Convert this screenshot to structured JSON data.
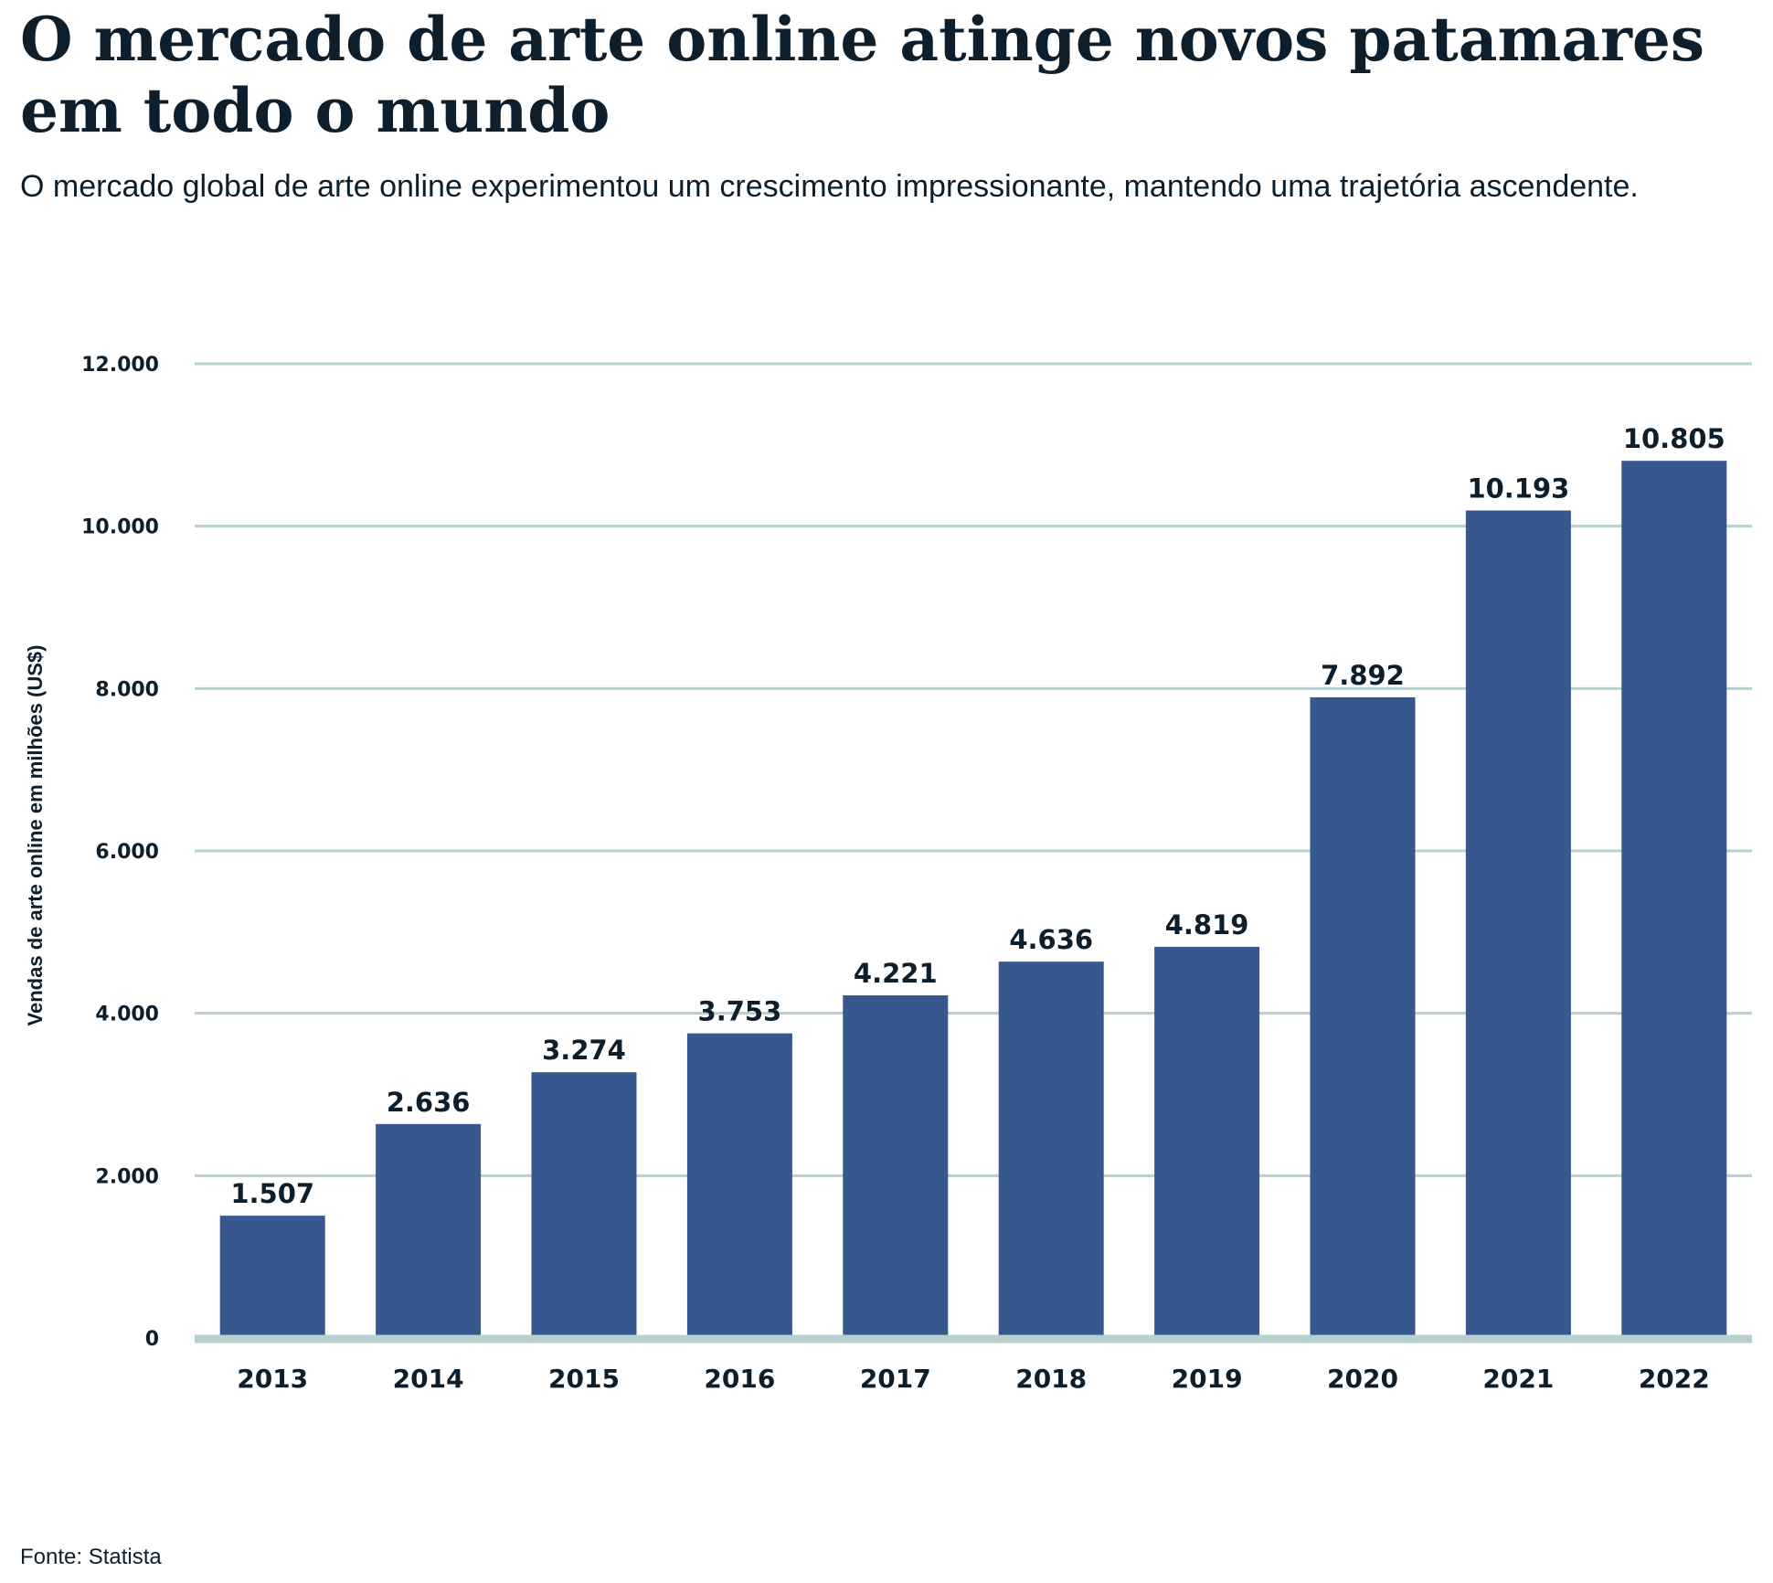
{
  "title": "O mercado de arte online atinge novos patamares em todo o mundo",
  "subtitle": "O mercado global de arte online experimentou um crescimento impressionante, mantendo uma trajetória ascendente.",
  "source": "Fonte: Statista",
  "colors": {
    "bar": "#36588f",
    "grid": "#b7cfcf",
    "text": "#0d1f2d"
  },
  "chart_data": {
    "type": "bar",
    "title": "O mercado de arte online atinge novos patamares em todo o mundo",
    "xlabel": "",
    "ylabel": "Vendas de arte online em milhões (US$)",
    "categories": [
      "2013",
      "2014",
      "2015",
      "2016",
      "2017",
      "2018",
      "2019",
      "2020",
      "2021",
      "2022"
    ],
    "values": [
      1507,
      2636,
      3274,
      3753,
      4221,
      4636,
      4819,
      7892,
      10193,
      10805
    ],
    "value_labels": [
      "1.507",
      "2.636",
      "3.274",
      "3.753",
      "4.221",
      "4.636",
      "4.819",
      "7.892",
      "10.193",
      "10.805"
    ],
    "ylim": [
      0,
      12000
    ],
    "yticks": [
      0,
      2000,
      4000,
      6000,
      8000,
      10000,
      12000
    ],
    "ytick_labels": [
      "0",
      "2.000",
      "4.000",
      "6.000",
      "8.000",
      "10.000",
      "12.000"
    ],
    "grid": true,
    "legend": "none"
  }
}
